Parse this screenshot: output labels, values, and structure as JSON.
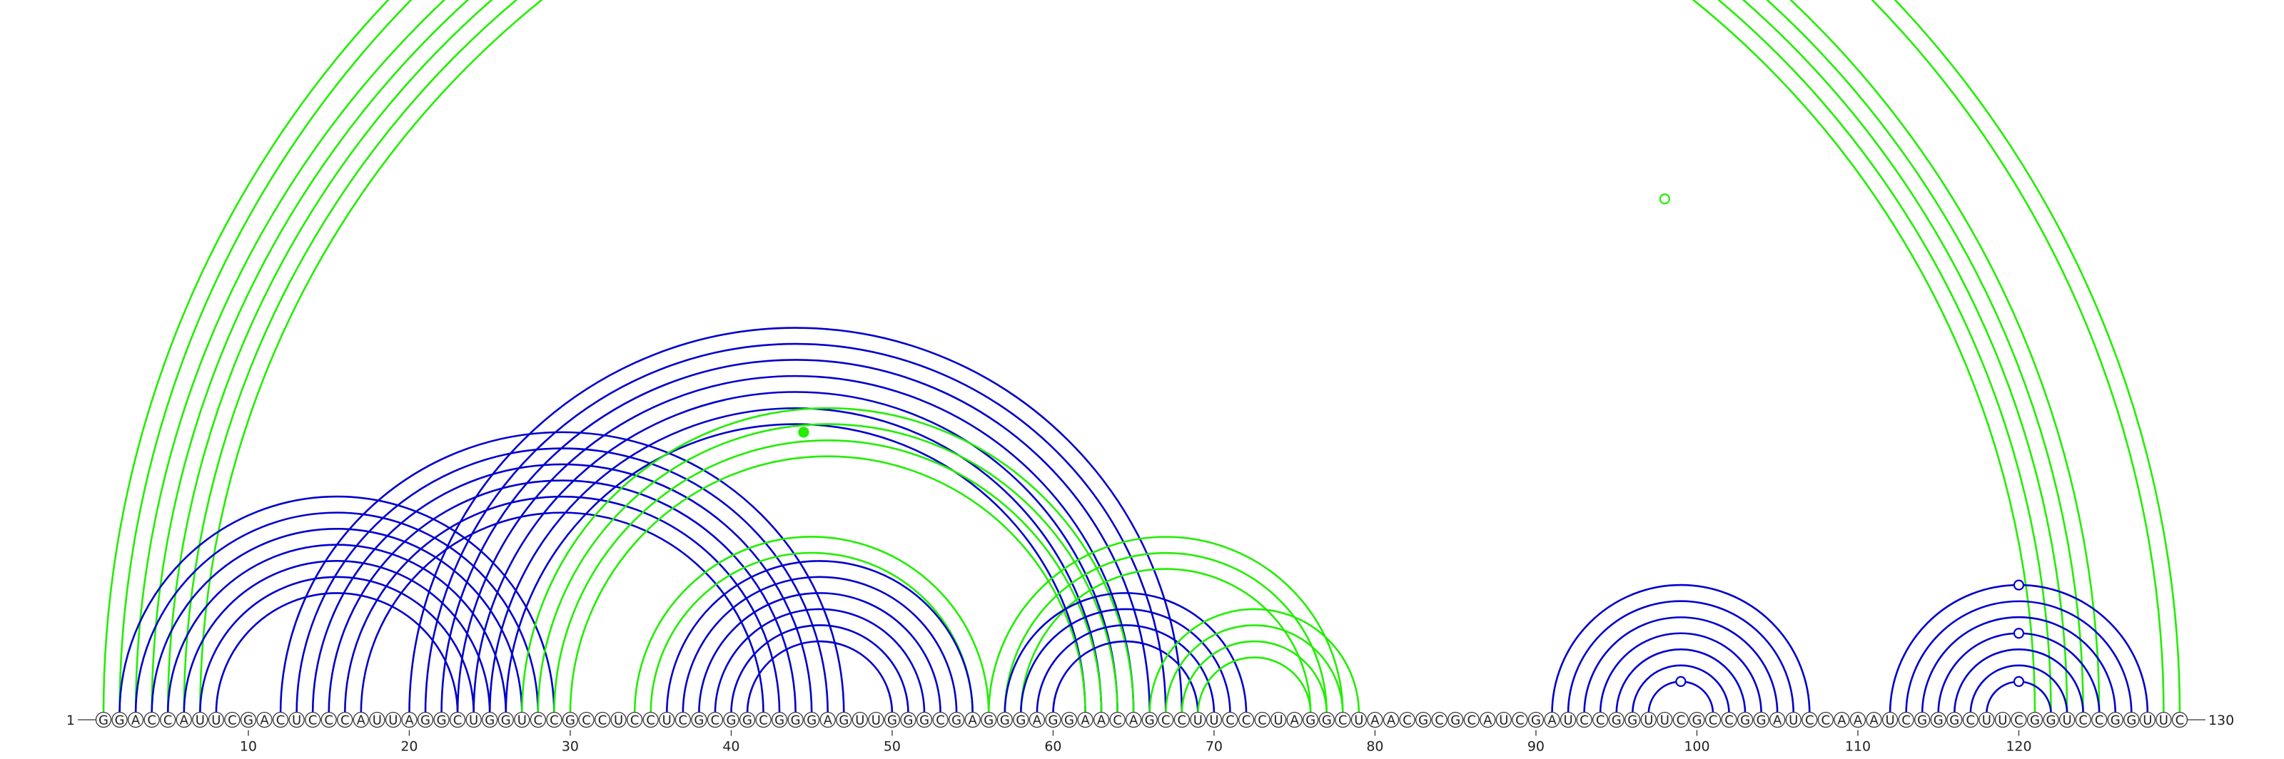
{
  "sequence": "GGACCAUUCGACUCCCAUUAGGCUGGUCCGCCUCCUCGCGGCGGGAGUUGGGCGAGGGAGGAACAGCCUUCCCUAGGCUAACGCGCAUCGAUCCGGUUCGCCGGAUCCAAAUCGGGCUUCGGUCCGGUUC",
  "start_label": "1",
  "end_label": "130",
  "ticks": [
    10,
    20,
    30,
    40,
    50,
    60,
    70,
    80,
    90,
    100,
    110,
    120
  ],
  "colors": {
    "green": "#22ee00",
    "blue": "#0000cc",
    "backbone": "#555555"
  },
  "arc_groups": [
    {
      "color": "green",
      "pairs": [
        [
          1,
          130
        ],
        [
          2,
          129
        ],
        [
          3,
          125
        ],
        [
          4,
          124
        ],
        [
          5,
          123
        ],
        [
          6,
          122
        ],
        [
          7,
          121
        ]
      ]
    },
    {
      "color": "blue",
      "pairs": [
        [
          2,
          29
        ],
        [
          3,
          28
        ],
        [
          4,
          27
        ],
        [
          5,
          26
        ],
        [
          6,
          25
        ],
        [
          7,
          24
        ],
        [
          8,
          23
        ]
      ]
    },
    {
      "color": "blue",
      "pairs": [
        [
          12,
          47
        ],
        [
          13,
          46
        ],
        [
          14,
          45
        ],
        [
          15,
          44
        ],
        [
          16,
          43
        ],
        [
          17,
          42
        ]
      ]
    },
    {
      "color": "blue",
      "pairs": [
        [
          20,
          68
        ],
        [
          21,
          67
        ],
        [
          22,
          66
        ],
        [
          23,
          65
        ],
        [
          24,
          64
        ],
        [
          25,
          63
        ],
        [
          26,
          62
        ]
      ]
    },
    {
      "color": "green",
      "pairs": [
        [
          27,
          65
        ],
        [
          28,
          64
        ],
        [
          29,
          63
        ],
        [
          30,
          62
        ]
      ]
    },
    {
      "color": "green",
      "pairs": [
        [
          34,
          56
        ],
        [
          35,
          55
        ]
      ]
    },
    {
      "color": "blue",
      "pairs": [
        [
          36,
          55
        ],
        [
          37,
          54
        ],
        [
          38,
          53
        ],
        [
          39,
          52
        ],
        [
          40,
          51
        ],
        [
          41,
          50
        ]
      ]
    },
    {
      "color": "green",
      "pairs": [
        [
          56,
          78
        ],
        [
          57,
          77
        ],
        [
          58,
          76
        ]
      ]
    },
    {
      "color": "blue",
      "pairs": [
        [
          57,
          72
        ],
        [
          58,
          71
        ],
        [
          59,
          70
        ],
        [
          60,
          69
        ]
      ]
    },
    {
      "color": "green",
      "pairs": [
        [
          66,
          79
        ],
        [
          67,
          78
        ],
        [
          68,
          77
        ],
        [
          69,
          76
        ]
      ]
    },
    {
      "color": "blue",
      "pairs": [
        [
          91,
          107
        ],
        [
          92,
          106
        ],
        [
          93,
          105
        ],
        [
          94,
          104
        ],
        [
          95,
          103
        ],
        [
          96,
          102
        ],
        [
          97,
          101
        ]
      ]
    },
    {
      "color": "blue",
      "pairs": [
        [
          112,
          128
        ],
        [
          113,
          127
        ],
        [
          114,
          126
        ],
        [
          115,
          125
        ],
        [
          116,
          124
        ],
        [
          117,
          123
        ],
        [
          118,
          122
        ]
      ]
    }
  ],
  "markers": [
    {
      "i": 66,
      "j": 130,
      "color": "green",
      "filled": false
    },
    {
      "i": 27,
      "j": 62,
      "color": "green",
      "filled": true
    },
    {
      "i": 97,
      "j": 101,
      "color": "blue",
      "filled": false
    },
    {
      "i": 118,
      "j": 122,
      "color": "blue",
      "filled": false
    },
    {
      "i": 115,
      "j": 125,
      "color": "blue",
      "filled": false
    },
    {
      "i": 112,
      "j": 128,
      "color": "blue",
      "filled": false
    }
  ]
}
